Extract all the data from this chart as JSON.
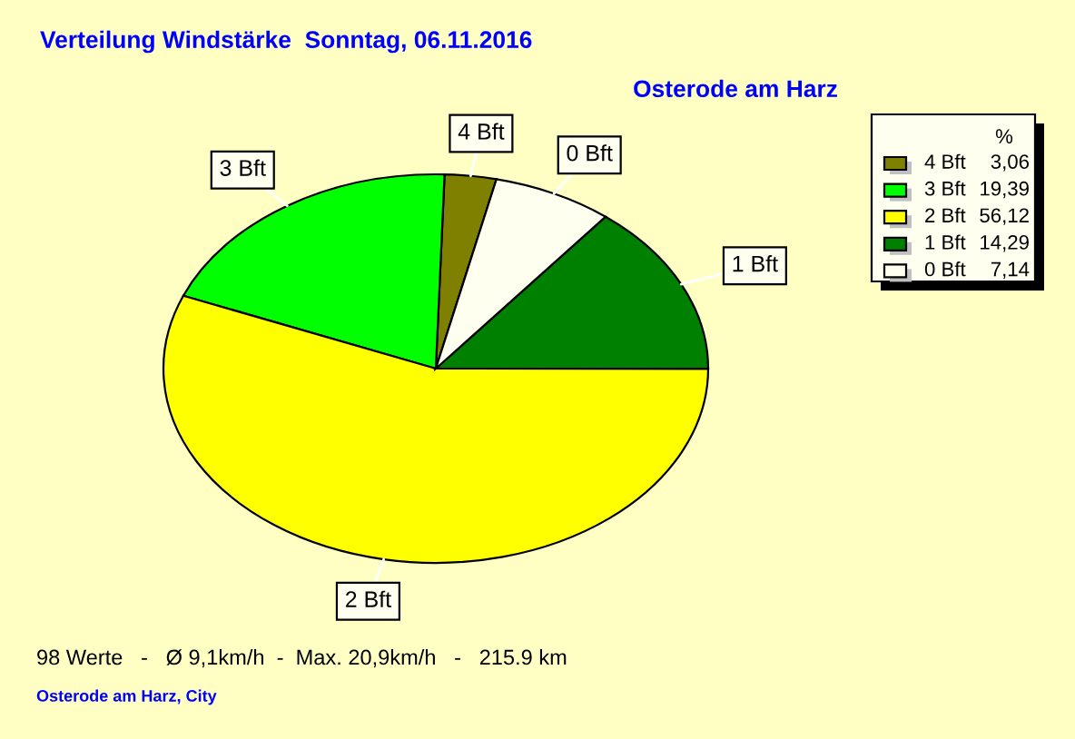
{
  "chart_data": {
    "type": "pie",
    "title": "Verteilung Windstärke  Sonntag, 06.11.2016",
    "subtitle": "Osterode am Harz",
    "categories": [
      "4 Bft",
      "3 Bft",
      "2 Bft",
      "1 Bft",
      "0 Bft"
    ],
    "values": [
      3.06,
      19.39,
      56.12,
      14.29,
      7.14
    ],
    "value_labels": [
      "3,06",
      "19,39",
      "56,12",
      "14,29",
      "7,14"
    ],
    "colors": [
      "#808000",
      "#00ff00",
      "#ffff00",
      "#008000",
      "#fffff0"
    ],
    "legend": "top right",
    "legend_title": "%",
    "annotations": [
      "98 Werte   -   Ø 9,1km/h  -  Max. 20,9km/h   -   215.9 km",
      "Osterode am Harz, City"
    ]
  }
}
